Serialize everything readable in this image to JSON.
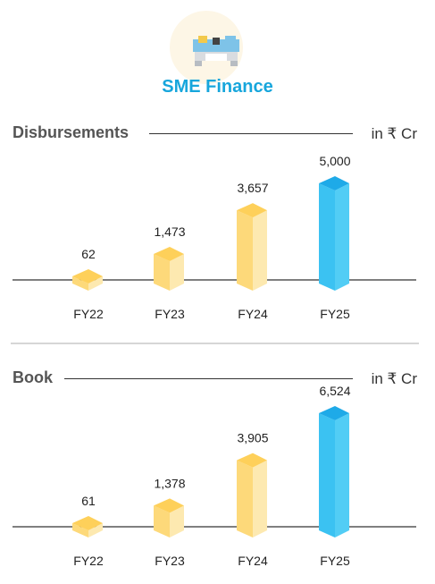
{
  "brand": {
    "title": "SME Finance",
    "logo_icon": "truck-building-icon"
  },
  "colors": {
    "accent": "#17a6dc",
    "bar_yellow_front": "#fdd97a",
    "bar_yellow_side": "#fde9b0",
    "bar_yellow_top": "#fed05a",
    "bar_blue_front": "#3bc2f2",
    "bar_blue_side": "#52cdf5",
    "bar_blue_top": "#1eaae8"
  },
  "chart_data": [
    {
      "type": "bar",
      "title": "Disbursements",
      "unit": "in ₹ Cr",
      "categories": [
        "FY22",
        "FY23",
        "FY24",
        "FY25"
      ],
      "values": [
        62,
        1473,
        3657,
        5000
      ],
      "value_labels": [
        "62",
        "1,473",
        "3,657",
        "5,000"
      ],
      "highlight": "FY25",
      "grid": false
    },
    {
      "type": "bar",
      "title": "Book",
      "unit": "in ₹ Cr",
      "categories": [
        "FY22",
        "FY23",
        "FY24",
        "FY25"
      ],
      "values": [
        61,
        1378,
        3905,
        6524
      ],
      "value_labels": [
        "61",
        "1,378",
        "3,905",
        "6,524"
      ],
      "highlight": "FY25",
      "grid": false
    }
  ]
}
